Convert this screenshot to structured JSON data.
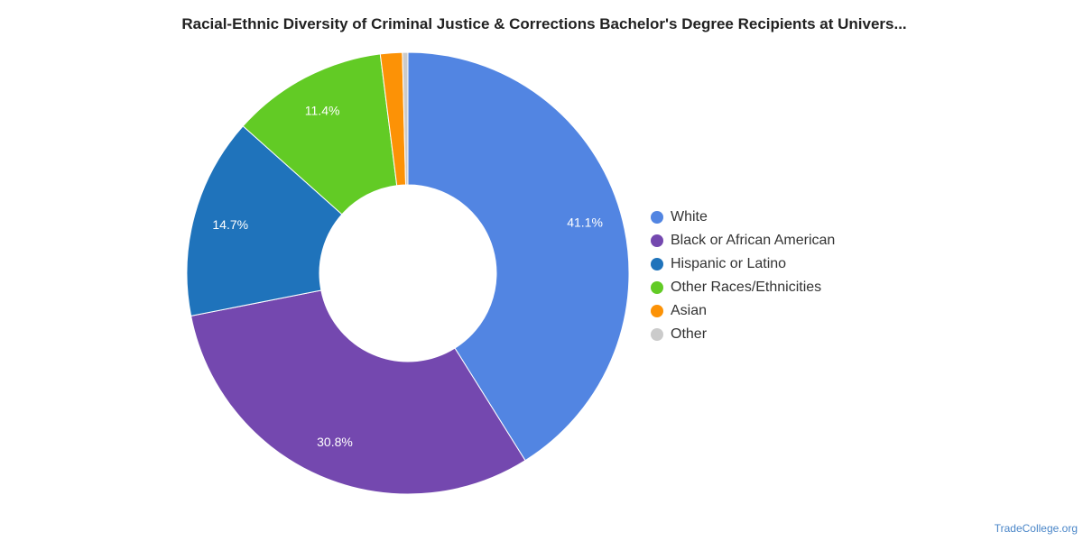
{
  "chart_data": {
    "type": "pie",
    "title": "Racial-Ethnic Diversity of Criminal Justice & Corrections Bachelor's Degree Recipients at Univers...",
    "donut": true,
    "legend_position": "right",
    "slices": [
      {
        "name": "White",
        "value": 41.1,
        "label": "41.1%",
        "color": "#5285e2"
      },
      {
        "name": "Black or African American",
        "value": 30.8,
        "label": "30.8%",
        "color": "#7448af"
      },
      {
        "name": "Hispanic or Latino",
        "value": 14.7,
        "label": "14.7%",
        "color": "#1f73bb"
      },
      {
        "name": "Other Races/Ethnicities",
        "value": 11.4,
        "label": "11.4%",
        "color": "#62cb25"
      },
      {
        "name": "Asian",
        "value": 1.6,
        "label": "",
        "color": "#fc9206"
      },
      {
        "name": "Other",
        "value": 0.4,
        "label": "",
        "color": "#cbcbcb"
      }
    ]
  },
  "footer": {
    "credit": "TradeCollege.org"
  }
}
